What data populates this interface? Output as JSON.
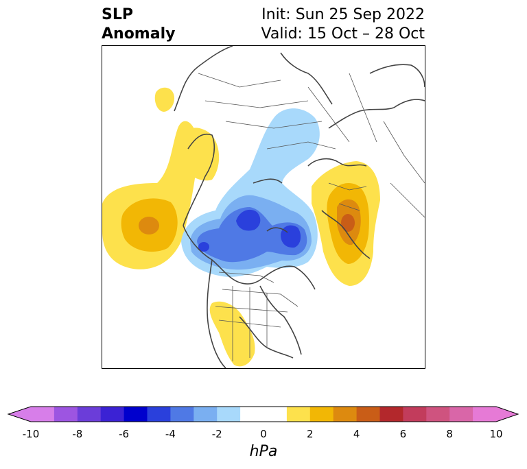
{
  "title": {
    "line1": "SLP",
    "line2": "Anomaly"
  },
  "info": {
    "init": "Init: Sun 25 Sep 2022",
    "valid": "Valid: 15 Oct – 28 Oct"
  },
  "colorbar": {
    "unit": "hPa",
    "ticks": [
      "-10",
      "-8",
      "-6",
      "-4",
      "-2",
      "0",
      "2",
      "4",
      "6",
      "8",
      "10"
    ],
    "colors": [
      "#d77ee9",
      "#9d55e1",
      "#6b3dd9",
      "#3b22d4",
      "#0000cd",
      "#2a40dc",
      "#4f79e5",
      "#7aaff1",
      "#a8d9fb",
      "#ffffff",
      "#ffffff",
      "#fde14c",
      "#f2b705",
      "#dd8a0f",
      "#c95d17",
      "#b3282c",
      "#c23c5c",
      "#cf537f",
      "#d966a8",
      "#e67ad6"
    ]
  },
  "map": {
    "colors": {
      "yellow": "#fde14c",
      "gold": "#f2b705",
      "orange": "#dd8a0f",
      "darkorange": "#c95d17",
      "lightblue": "#a8d9fb",
      "midblue": "#7aaff1",
      "blue": "#4f79e5",
      "deepblue": "#2a40dc"
    }
  }
}
